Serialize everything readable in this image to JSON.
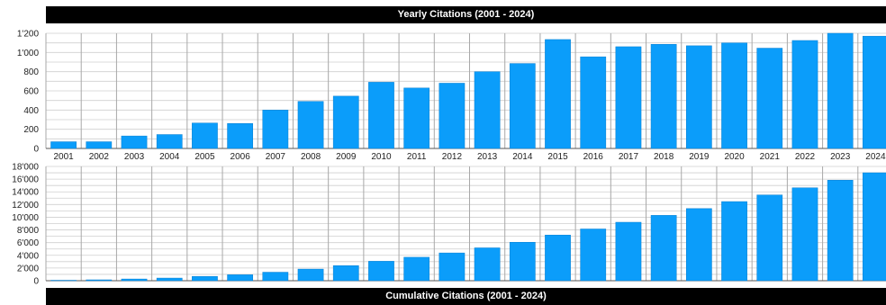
{
  "chart_data": [
    {
      "type": "bar",
      "title": "Yearly Citations (2001 - 2024)",
      "categories": [
        "2001",
        "2002",
        "2003",
        "2004",
        "2005",
        "2006",
        "2007",
        "2008",
        "2009",
        "2010",
        "2011",
        "2012",
        "2013",
        "2014",
        "2015",
        "2016",
        "2017",
        "2018",
        "2019",
        "2020",
        "2021",
        "2022",
        "2023",
        "2024"
      ],
      "values": [
        70,
        70,
        130,
        145,
        265,
        260,
        400,
        490,
        545,
        690,
        630,
        680,
        800,
        885,
        1135,
        955,
        1060,
        1085,
        1070,
        1100,
        1045,
        1125,
        1200,
        1170
      ],
      "ylim": [
        0,
        1200
      ],
      "yticks": [
        0,
        200,
        400,
        600,
        800,
        1000,
        1200
      ],
      "ytick_labels": [
        "0",
        "200",
        "400",
        "600",
        "800",
        "1'000",
        "1'200"
      ],
      "grid": true,
      "bar_color": "#0b9dfa"
    },
    {
      "type": "bar",
      "title": "Cumulative Citations (2001 - 2024)",
      "categories": [
        "2001",
        "2002",
        "2003",
        "2004",
        "2005",
        "2006",
        "2007",
        "2008",
        "2009",
        "2010",
        "2011",
        "2012",
        "2013",
        "2014",
        "2015",
        "2016",
        "2017",
        "2018",
        "2019",
        "2020",
        "2021",
        "2022",
        "2023",
        "2024"
      ],
      "values": [
        70,
        140,
        270,
        415,
        680,
        940,
        1340,
        1830,
        2375,
        3065,
        3695,
        4375,
        5175,
        6060,
        7195,
        8150,
        9210,
        10295,
        11365,
        12465,
        13510,
        14635,
        15835,
        17005
      ],
      "ylim": [
        0,
        18000
      ],
      "yticks": [
        0,
        2000,
        4000,
        6000,
        8000,
        10000,
        12000,
        14000,
        16000,
        18000
      ],
      "ytick_labels": [
        "0",
        "2'000",
        "4'000",
        "6'000",
        "8'000",
        "10'000",
        "12'000",
        "14'000",
        "16'000",
        "18'000"
      ],
      "grid": true,
      "bar_color": "#0b9dfa"
    }
  ]
}
